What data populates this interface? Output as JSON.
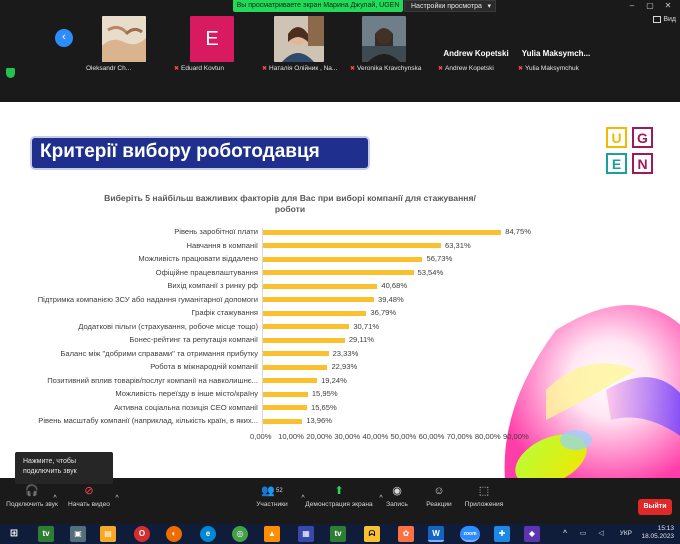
{
  "zoom": {
    "share_banner": "Вы просматриваете экран Марина Джулай, UGEN",
    "view_settings": "Настройки просмотра",
    "view_button": "Вид",
    "participants": [
      {
        "name": "Oleksandr Ch..."
      },
      {
        "name": "Eduard Kovtun",
        "initial": "E",
        "avatar_color": "#d81b60"
      },
      {
        "name": "Наталія Олійник , Na..."
      },
      {
        "name": "Veronika Kravchynska"
      },
      {
        "name": "Andrew Kopetski",
        "big_label": "Andrew Kopetski"
      },
      {
        "name": "Yulia Maksymchuk",
        "big_label": "Yulia Maksymch..."
      }
    ]
  },
  "slide": {
    "title": "Критерії вибору роботодавця",
    "logo_letters": [
      "U",
      "G",
      "E",
      "N"
    ],
    "logo_colors": [
      "#f5b800",
      "#9e1a5a",
      "#1aa0a0",
      "#9e1a5a"
    ]
  },
  "chart_data": {
    "type": "bar",
    "orientation": "horizontal",
    "title": "Виберіть 5 найбільш важливих факторів для Вас при виборі компанії для стажування/роботи",
    "categories": [
      "Рівень заробітної плати",
      "Навчання в компанії",
      "Можливість працювати віддалено",
      "Офіційне працевлаштування",
      "Вихід компанії з ринку рф",
      "Підтримка компанією ЗСУ або надання гуманітарної допомоги",
      "Графік стажування",
      "Додаткові пільги (страхування, робоче місце тощо)",
      "Бонес-рейтинг та репутація компанії",
      "Баланс між \"добрими справами\" та отримання прибутку",
      "Робота в міжнародній компанії",
      "Позитивний вплив товарів/послуг компанії на навколишнє...",
      "Можливість переїзду в інше місто/країну",
      "Активна соціальна позиція CEO компанії",
      "Рівень масштабу компанії (наприклад, кількість країн, в яких..."
    ],
    "values": [
      84.75,
      63.31,
      56.73,
      53.54,
      40.68,
      39.48,
      36.79,
      30.71,
      29.11,
      23.33,
      22.93,
      19.24,
      15.95,
      15.65,
      13.96
    ],
    "value_labels": [
      "84,75%",
      "63,31%",
      "56,73%",
      "53,54%",
      "40,68%",
      "39,48%",
      "36,79%",
      "30,71%",
      "29,11%",
      "23,33%",
      "22,93%",
      "19,24%",
      "15,95%",
      "15,65%",
      "13,96%"
    ],
    "xlim": [
      0,
      90
    ],
    "x_ticks": [
      "0,00%",
      "10,00%",
      "20,00%",
      "30,00%",
      "40,00%",
      "50,00%",
      "60,00%",
      "70,00%",
      "80,00%",
      "90,00%"
    ],
    "bar_color": "#fbc02d",
    "grid": false
  },
  "toolbar": {
    "audio_tip": "Нажмите, чтобы подключить звук",
    "connect_audio": "Подключить звук",
    "start_video": "Начать видео",
    "participants": "Участники",
    "participants_count": "52",
    "share_screen": "Демонстрация экрана",
    "record": "Запись",
    "reactions": "Реакции",
    "apps": "Приложения",
    "exit": "Выйти"
  },
  "taskbar": {
    "language": "УКР",
    "time": "15:13",
    "date": "18.05.2023"
  }
}
